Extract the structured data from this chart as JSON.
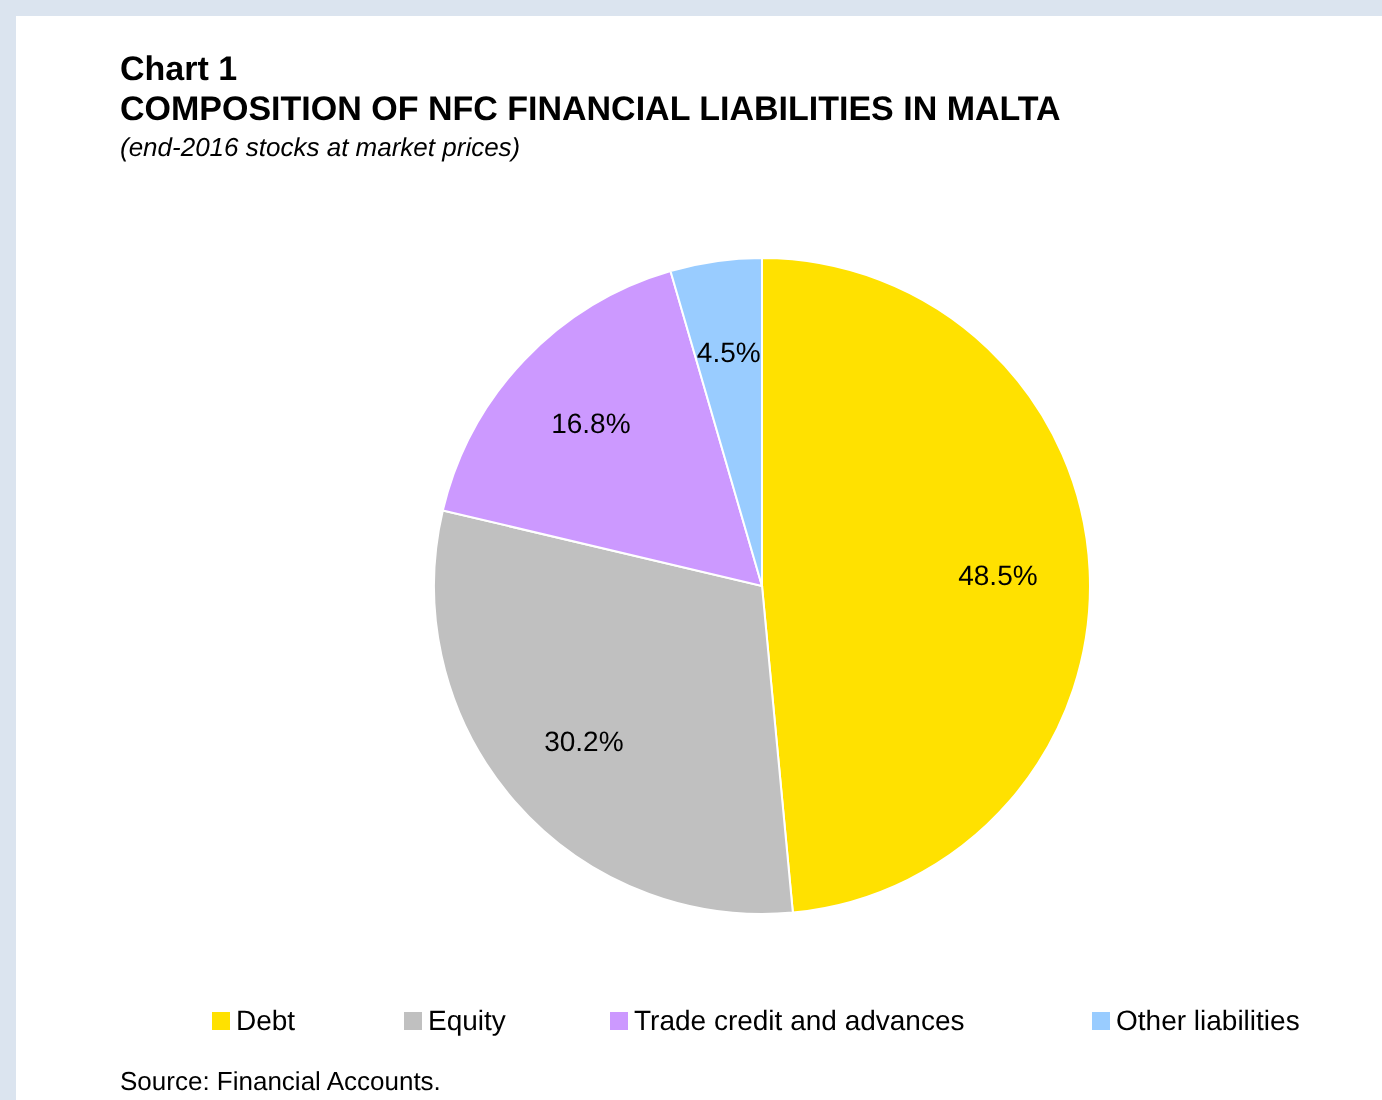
{
  "chart_data": {
    "type": "pie",
    "title": "Chart 1",
    "subtitle": "COMPOSITION OF NFC FINANCIAL LIABILITIES IN MALTA",
    "annotations": [
      "(end-2016 stocks at market prices)",
      "Source: Financial Accounts."
    ],
    "categories": [
      "Debt",
      "Equity",
      "Trade credit and advances",
      "Other liabilities"
    ],
    "values": [
      48.5,
      30.2,
      16.8,
      4.5
    ],
    "value_labels": [
      "48.5%",
      "30.2%",
      "16.8%",
      "4.5%"
    ],
    "colors": [
      "#ffe100",
      "#c0c0c0",
      "#cc99ff",
      "#99ccff"
    ],
    "legend": "bottom"
  }
}
